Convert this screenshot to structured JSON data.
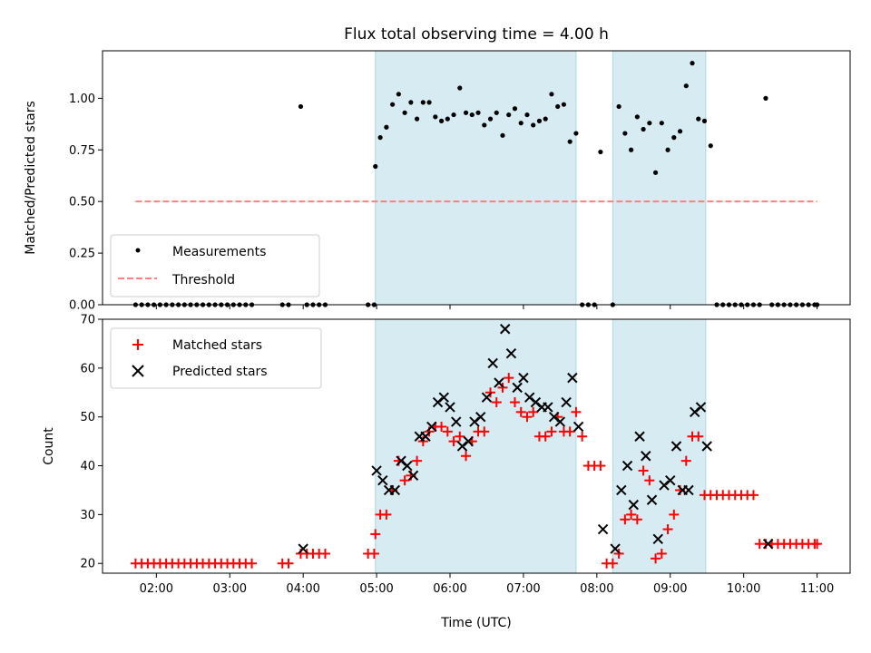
{
  "chart_data": [
    {
      "type": "scatter",
      "title": "Flux total observing time = 4.00 h",
      "xlabel": "",
      "ylabel": "Matched/Predicted stars",
      "xlim": [
        "01:16",
        "11:27"
      ],
      "ylim": [
        0,
        1.23
      ],
      "yticks": [
        "0.00",
        "0.25",
        "0.50",
        "0.75",
        "1.00"
      ],
      "grid": false,
      "legend_position": "lower-left",
      "shaded_intervals": [
        [
          "04:59",
          "07:43"
        ],
        [
          "08:13",
          "09:29"
        ]
      ],
      "threshold": {
        "name": "Threshold",
        "value": 0.5,
        "x_range": [
          "01:43",
          "11:00"
        ],
        "color": "#ff8080"
      },
      "series": [
        {
          "name": "Measurements",
          "color": "#000000",
          "x": [
            "01:43",
            "01:48",
            "01:53",
            "01:58",
            "02:03",
            "02:08",
            "02:13",
            "02:18",
            "02:23",
            "02:28",
            "02:33",
            "02:38",
            "02:43",
            "02:48",
            "02:53",
            "02:58",
            "03:03",
            "03:08",
            "03:13",
            "03:18",
            "03:43",
            "03:48",
            "03:58",
            "04:03",
            "04:08",
            "04:13",
            "04:18",
            "04:53",
            "04:58",
            "04:59",
            "05:03",
            "05:08",
            "05:13",
            "05:18",
            "05:23",
            "05:28",
            "05:33",
            "05:38",
            "05:43",
            "05:48",
            "05:53",
            "05:58",
            "06:03",
            "06:08",
            "06:13",
            "06:18",
            "06:23",
            "06:28",
            "06:33",
            "06:38",
            "06:43",
            "06:48",
            "06:53",
            "06:58",
            "07:03",
            "07:08",
            "07:13",
            "07:18",
            "07:23",
            "07:28",
            "07:33",
            "07:38",
            "07:43",
            "07:48",
            "07:53",
            "07:58",
            "08:03",
            "08:13",
            "08:18",
            "08:23",
            "08:28",
            "08:33",
            "08:38",
            "08:43",
            "08:48",
            "08:53",
            "08:58",
            "09:03",
            "09:08",
            "09:13",
            "09:18",
            "09:23",
            "09:28",
            "09:33",
            "09:38",
            "09:43",
            "09:48",
            "09:53",
            "09:58",
            "10:03",
            "10:08",
            "10:13",
            "10:18",
            "10:23",
            "10:28",
            "10:33",
            "10:38",
            "10:43",
            "10:48",
            "10:53",
            "10:58",
            "11:00"
          ],
          "y": [
            0,
            0,
            0,
            0,
            0,
            0,
            0,
            0,
            0,
            0,
            0,
            0,
            0,
            0,
            0,
            0,
            0,
            0,
            0,
            0,
            0,
            0,
            0.96,
            0,
            0,
            0,
            0,
            0,
            0,
            0.67,
            0.81,
            0.86,
            0.97,
            1.02,
            0.93,
            0.98,
            0.9,
            0.98,
            0.98,
            0.91,
            0.89,
            0.9,
            0.92,
            1.05,
            0.93,
            0.92,
            0.93,
            0.87,
            0.9,
            0.93,
            0.82,
            0.92,
            0.95,
            0.88,
            0.92,
            0.87,
            0.89,
            0.9,
            1.02,
            0.96,
            0.97,
            0.79,
            0.83,
            0,
            0,
            0,
            0.74,
            0,
            0.96,
            0.83,
            0.75,
            0.91,
            0.85,
            0.88,
            0.64,
            0.88,
            0.75,
            0.81,
            0.84,
            1.06,
            1.17,
            0.9,
            0.89,
            0.77,
            0,
            0,
            0,
            0,
            0,
            0,
            0,
            0,
            1.0,
            0,
            0,
            0,
            0,
            0,
            0,
            0,
            0,
            0
          ]
        }
      ]
    },
    {
      "type": "scatter",
      "title": "",
      "xlabel": "Time (UTC)",
      "ylabel": "Count",
      "xlim": [
        "01:16",
        "11:27"
      ],
      "ylim": [
        18,
        70
      ],
      "xticks": [
        "02:00",
        "03:00",
        "04:00",
        "05:00",
        "06:00",
        "07:00",
        "08:00",
        "09:00",
        "10:00",
        "11:00"
      ],
      "yticks": [
        "20",
        "30",
        "40",
        "50",
        "60",
        "70"
      ],
      "grid": false,
      "legend_position": "upper-left",
      "shaded_intervals": [
        [
          "04:59",
          "07:43"
        ],
        [
          "08:13",
          "09:29"
        ]
      ],
      "series": [
        {
          "name": "Matched stars",
          "marker": "plus",
          "color": "#ff0000",
          "x": [
            "01:43",
            "01:48",
            "01:53",
            "01:58",
            "02:03",
            "02:08",
            "02:13",
            "02:18",
            "02:23",
            "02:28",
            "02:33",
            "02:38",
            "02:43",
            "02:48",
            "02:53",
            "02:58",
            "03:03",
            "03:08",
            "03:13",
            "03:18",
            "03:43",
            "03:48",
            "03:58",
            "04:03",
            "04:08",
            "04:13",
            "04:18",
            "04:53",
            "04:58",
            "04:59",
            "05:03",
            "05:08",
            "05:13",
            "05:18",
            "05:23",
            "05:28",
            "05:33",
            "05:38",
            "05:43",
            "05:48",
            "05:53",
            "05:58",
            "06:03",
            "06:08",
            "06:13",
            "06:18",
            "06:23",
            "06:28",
            "06:33",
            "06:38",
            "06:43",
            "06:48",
            "06:53",
            "06:58",
            "07:03",
            "07:08",
            "07:13",
            "07:18",
            "07:23",
            "07:28",
            "07:33",
            "07:38",
            "07:43",
            "07:48",
            "07:53",
            "07:58",
            "08:03",
            "08:08",
            "08:13",
            "08:18",
            "08:23",
            "08:28",
            "08:33",
            "08:38",
            "08:43",
            "08:48",
            "08:53",
            "08:58",
            "09:03",
            "09:08",
            "09:13",
            "09:18",
            "09:23",
            "09:28",
            "09:33",
            "09:38",
            "09:43",
            "09:48",
            "09:53",
            "09:58",
            "10:03",
            "10:08",
            "10:13",
            "10:18",
            "10:23",
            "10:28",
            "10:33",
            "10:38",
            "10:43",
            "10:48",
            "10:53",
            "10:58",
            "11:00"
          ],
          "y": [
            20,
            20,
            20,
            20,
            20,
            20,
            20,
            20,
            20,
            20,
            20,
            20,
            20,
            20,
            20,
            20,
            20,
            20,
            20,
            20,
            20,
            20,
            22,
            22,
            22,
            22,
            22,
            22,
            22,
            26,
            30,
            30,
            35,
            41,
            37,
            38,
            41,
            45,
            47,
            48,
            48,
            47,
            45,
            46,
            42,
            45,
            47,
            47,
            55,
            53,
            56,
            58,
            53,
            51,
            50,
            51,
            46,
            46,
            47,
            50,
            47,
            47,
            51,
            46,
            40,
            40,
            40,
            20,
            20,
            22,
            29,
            30,
            29,
            39,
            37,
            21,
            22,
            27,
            30,
            35,
            41,
            46,
            46,
            34,
            34,
            34,
            34,
            34,
            34,
            34,
            34,
            34,
            24,
            24,
            24,
            24,
            24,
            24,
            24,
            24,
            24,
            24,
            24
          ]
        },
        {
          "name": "Predicted stars",
          "marker": "x",
          "color": "#000000",
          "x": [
            "04:00",
            "05:00",
            "05:05",
            "05:10",
            "05:15",
            "05:20",
            "05:25",
            "05:30",
            "05:35",
            "05:40",
            "05:45",
            "05:50",
            "05:55",
            "06:00",
            "06:05",
            "06:10",
            "06:15",
            "06:20",
            "06:25",
            "06:30",
            "06:35",
            "06:40",
            "06:45",
            "06:50",
            "06:55",
            "07:00",
            "07:05",
            "07:10",
            "07:15",
            "07:20",
            "07:25",
            "07:30",
            "07:35",
            "07:40",
            "07:45",
            "08:05",
            "08:15",
            "08:20",
            "08:25",
            "08:30",
            "08:35",
            "08:40",
            "08:45",
            "08:50",
            "08:55",
            "09:00",
            "09:05",
            "09:10",
            "09:15",
            "09:20",
            "09:25",
            "09:30",
            "10:20"
          ],
          "y": [
            23,
            39,
            37,
            35,
            35,
            41,
            40,
            38,
            46,
            46,
            48,
            53,
            54,
            52,
            49,
            44,
            45,
            49,
            50,
            54,
            61,
            57,
            68,
            63,
            56,
            58,
            54,
            53,
            52,
            52,
            50,
            49,
            53,
            58,
            48,
            27,
            23,
            35,
            40,
            32,
            46,
            42,
            33,
            25,
            36,
            37,
            44,
            35,
            35,
            51,
            52,
            44,
            24
          ]
        }
      ]
    }
  ]
}
